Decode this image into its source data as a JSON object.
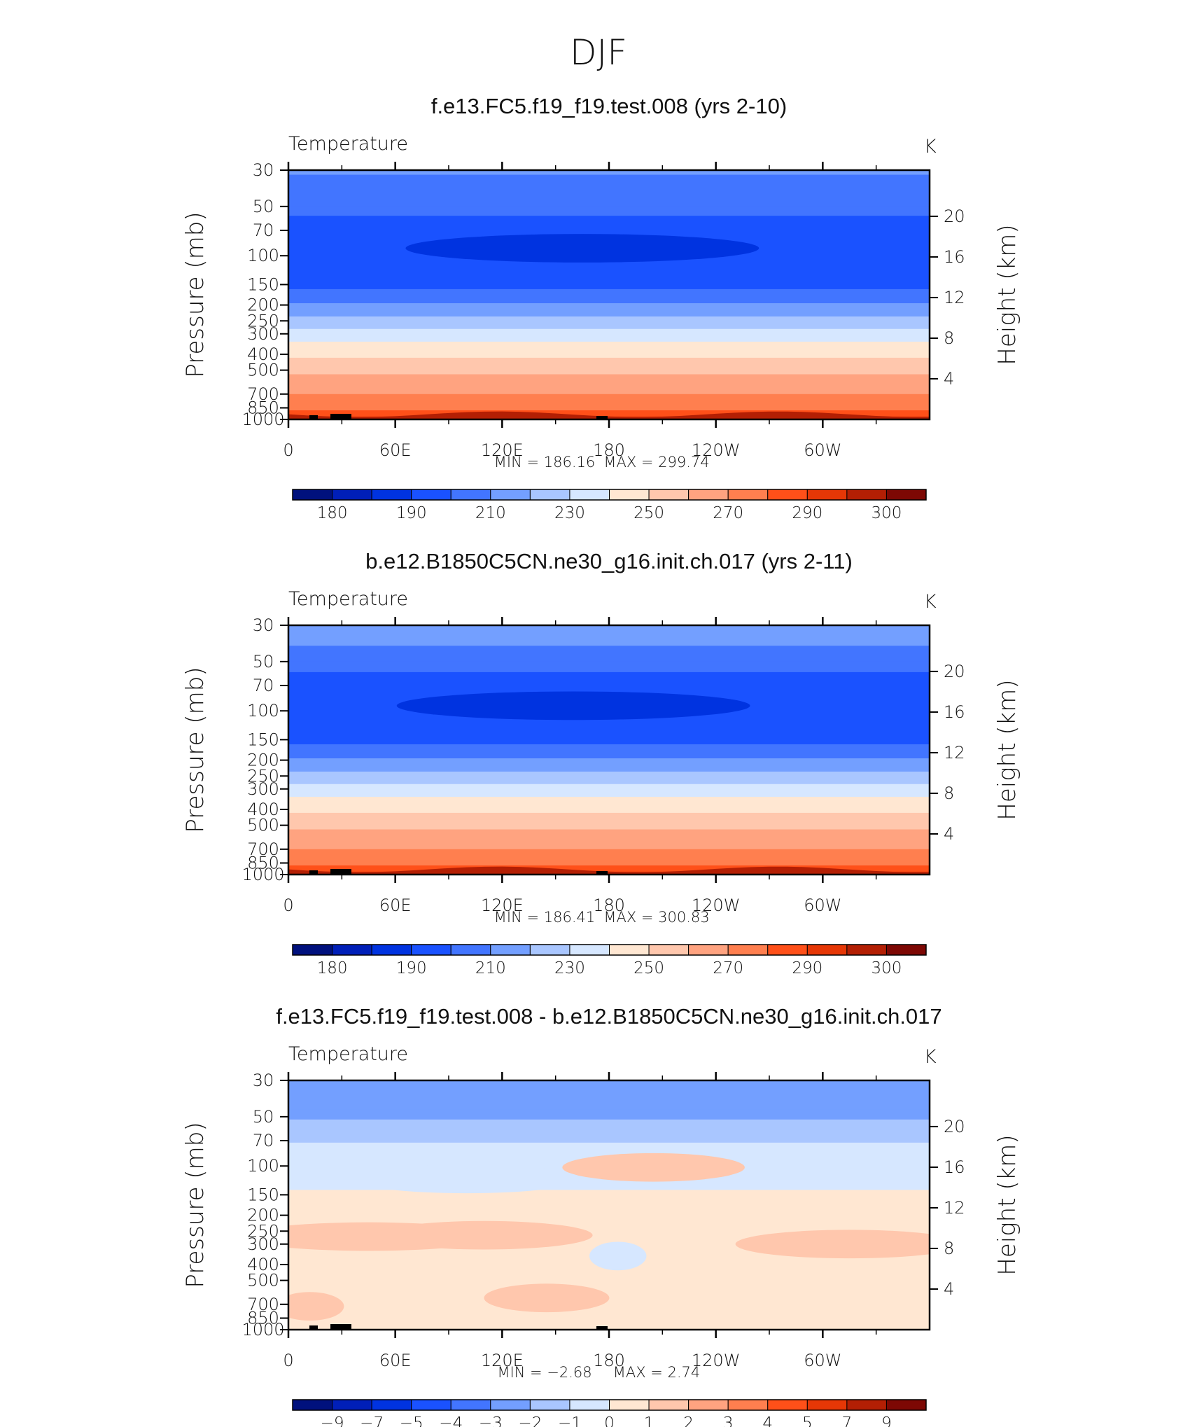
{
  "season": "DJF",
  "chart_data": [
    {
      "type": "heatmap",
      "title": "f.e13.FC5.f19_f19.test.008 (yrs 2-10)",
      "variable": "Temperature",
      "units": "K",
      "ylabel": "Pressure (mb)",
      "ylabel_right": "Height (km)",
      "x_ticks": [
        "0",
        "60E",
        "120E",
        "180",
        "120W",
        "60W"
      ],
      "y_ticks": [
        "30",
        "50",
        "70",
        "100",
        "150",
        "200",
        "250",
        "300",
        "400",
        "500",
        "700",
        "850",
        "1000"
      ],
      "y_ticks_right": [
        "20",
        "16",
        "12",
        "8",
        "4"
      ],
      "min_label": "MIN  =  186.16",
      "max_label": "MAX  =  299.74",
      "colorbar": {
        "colors": [
          "#00117d",
          "#001fb8",
          "#0033e0",
          "#1a52ff",
          "#4275ff",
          "#739fff",
          "#a9c6ff",
          "#d6e7ff",
          "#ffe7d2",
          "#ffc7ad",
          "#ffa380",
          "#ff7f4f",
          "#ff5019",
          "#e63706",
          "#b31f04",
          "#7d0804"
        ],
        "labels": [
          "180",
          "190",
          "210",
          "230",
          "250",
          "270",
          "290",
          "300"
        ]
      },
      "bands": [
        {
          "p": 30,
          "color": "#739fff"
        },
        {
          "p": 32,
          "color": "#4275ff"
        },
        {
          "p": 50,
          "color": "#4275ff"
        },
        {
          "p": 57,
          "color": "#1a52ff"
        },
        {
          "p": 140,
          "color": "#1a52ff"
        },
        {
          "p": 160,
          "color": "#4275ff"
        },
        {
          "p": 195,
          "color": "#739fff"
        },
        {
          "p": 235,
          "color": "#a9c6ff"
        },
        {
          "p": 280,
          "color": "#d6e7ff"
        },
        {
          "p": 335,
          "color": "#ffe7d2"
        },
        {
          "p": 420,
          "color": "#ffc7ad"
        },
        {
          "p": 530,
          "color": "#ffa380"
        },
        {
          "p": 700,
          "color": "#ff7f4f"
        },
        {
          "p": 880,
          "color": "#ff5019"
        },
        {
          "p": 960,
          "color": "#e63706"
        },
        {
          "p": 1000,
          "color": "#e63706"
        }
      ],
      "blobs": [
        {
          "lon": 165,
          "p": 90,
          "dlon": 62,
          "color": "#0033e0"
        }
      ]
    },
    {
      "type": "heatmap",
      "title": "b.e12.B1850C5CN.ne30_g16.init.ch.017 (yrs 2-11)",
      "variable": "Temperature",
      "units": "K",
      "ylabel": "Pressure (mb)",
      "ylabel_right": "Height (km)",
      "x_ticks": [
        "0",
        "60E",
        "120E",
        "180",
        "120W",
        "60W"
      ],
      "y_ticks": [
        "30",
        "50",
        "70",
        "100",
        "150",
        "200",
        "250",
        "300",
        "400",
        "500",
        "700",
        "850",
        "1000"
      ],
      "y_ticks_right": [
        "20",
        "16",
        "12",
        "8",
        "4"
      ],
      "min_label": "MIN  =  186.41",
      "max_label": "MAX  =  300.83",
      "colorbar": {
        "colors": [
          "#00117d",
          "#001fb8",
          "#0033e0",
          "#1a52ff",
          "#4275ff",
          "#739fff",
          "#a9c6ff",
          "#d6e7ff",
          "#ffe7d2",
          "#ffc7ad",
          "#ffa380",
          "#ff7f4f",
          "#ff5019",
          "#e63706",
          "#b31f04",
          "#7d0804"
        ],
        "labels": [
          "180",
          "190",
          "210",
          "230",
          "250",
          "270",
          "290",
          "300"
        ]
      },
      "bands": [
        {
          "p": 30,
          "color": "#739fff"
        },
        {
          "p": 40,
          "color": "#4275ff"
        },
        {
          "p": 50,
          "color": "#4275ff"
        },
        {
          "p": 58,
          "color": "#1a52ff"
        },
        {
          "p": 140,
          "color": "#1a52ff"
        },
        {
          "p": 160,
          "color": "#4275ff"
        },
        {
          "p": 195,
          "color": "#739fff"
        },
        {
          "p": 235,
          "color": "#a9c6ff"
        },
        {
          "p": 280,
          "color": "#d6e7ff"
        },
        {
          "p": 335,
          "color": "#ffe7d2"
        },
        {
          "p": 420,
          "color": "#ffc7ad"
        },
        {
          "p": 530,
          "color": "#ffa380"
        },
        {
          "p": 700,
          "color": "#ff7f4f"
        },
        {
          "p": 880,
          "color": "#ff5019"
        },
        {
          "p": 960,
          "color": "#e63706"
        },
        {
          "p": 1000,
          "color": "#e63706"
        }
      ],
      "blobs": [
        {
          "lon": 160,
          "p": 93,
          "dlon": 62,
          "color": "#0033e0"
        }
      ]
    },
    {
      "type": "heatmap",
      "title": "f.e13.FC5.f19_f19.test.008 - b.e12.B1850C5CN.ne30_g16.init.ch.017",
      "variable": "Temperature",
      "units": "K",
      "ylabel": "Pressure (mb)",
      "ylabel_right": "Height (km)",
      "x_ticks": [
        "0",
        "60E",
        "120E",
        "180",
        "120W",
        "60W"
      ],
      "y_ticks": [
        "30",
        "50",
        "70",
        "100",
        "150",
        "200",
        "250",
        "300",
        "400",
        "500",
        "700",
        "850",
        "1000"
      ],
      "y_ticks_right": [
        "20",
        "16",
        "12",
        "8",
        "4"
      ],
      "min_label": "MIN  =   −2.68",
      "max_label": "MAX  =     2.74",
      "colorbar": {
        "colors": [
          "#00117d",
          "#001fb8",
          "#0033e0",
          "#1a52ff",
          "#4275ff",
          "#739fff",
          "#a9c6ff",
          "#d6e7ff",
          "#ffe7d2",
          "#ffc7ad",
          "#ffa380",
          "#ff7f4f",
          "#ff5019",
          "#e63706",
          "#b31f04",
          "#7d0804"
        ],
        "labels": [
          "−9",
          "−7",
          "−5",
          "−4",
          "−3",
          "−2",
          "−1",
          "0",
          "1",
          "2",
          "3",
          "4",
          "5",
          "7",
          "9"
        ]
      },
      "bands": [
        {
          "p": 30,
          "color": "#739fff"
        },
        {
          "p": 45,
          "color": "#739fff"
        },
        {
          "p": 52,
          "color": "#a9c6ff"
        },
        {
          "p": 62,
          "color": "#a9c6ff"
        },
        {
          "p": 72,
          "color": "#d6e7ff"
        },
        {
          "p": 110,
          "color": "#d6e7ff"
        },
        {
          "p": 140,
          "color": "#ffe7d2"
        },
        {
          "p": 1000,
          "color": "#ffe7d2"
        }
      ],
      "blobs": [
        {
          "lon": 100,
          "p": 120,
          "dlon": 40,
          "color": "#d6e7ff"
        },
        {
          "lon": 205,
          "p": 102,
          "dlon": 32,
          "color": "#ffc7ad"
        },
        {
          "lon": 45,
          "p": 270,
          "dlon": 45,
          "color": "#ffc7ad"
        },
        {
          "lon": 110,
          "p": 265,
          "dlon": 38,
          "color": "#ffc7ad"
        },
        {
          "lon": 315,
          "p": 300,
          "dlon": 40,
          "color": "#ffc7ad"
        },
        {
          "lon": 145,
          "p": 640,
          "dlon": 22,
          "color": "#ffc7ad"
        },
        {
          "lon": 12,
          "p": 720,
          "dlon": 12,
          "color": "#ffc7ad"
        },
        {
          "lon": 185,
          "p": 355,
          "dlon": 10,
          "color": "#d6e7ff"
        }
      ]
    }
  ]
}
